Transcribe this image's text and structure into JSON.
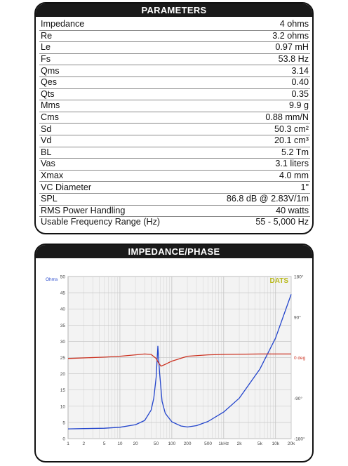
{
  "parameters": {
    "title": "PARAMETERS",
    "rows": [
      {
        "name": "Impedance",
        "value": "4 ohms"
      },
      {
        "name": "Re",
        "value": "3.2 ohms"
      },
      {
        "name": "Le",
        "value": "0.97 mH"
      },
      {
        "name": "Fs",
        "value": "53.8 Hz"
      },
      {
        "name": "Qms",
        "value": "3.14"
      },
      {
        "name": "Qes",
        "value": "0.40"
      },
      {
        "name": "Qts",
        "value": "0.35"
      },
      {
        "name": "Mms",
        "value": "9.9 g"
      },
      {
        "name": "Cms",
        "value": "0.88 mm/N"
      },
      {
        "name": "Sd",
        "value": "50.3 cm²"
      },
      {
        "name": "Vd",
        "value": "20.1 cm³"
      },
      {
        "name": "BL",
        "value": "5.2 Tm"
      },
      {
        "name": "Vas",
        "value": "3.1 liters"
      },
      {
        "name": "Xmax",
        "value": "4.0 mm"
      },
      {
        "name": "VC Diameter",
        "value": "1\""
      },
      {
        "name": "SPL",
        "value": "86.8 dB @ 2.83V/1m"
      },
      {
        "name": "RMS Power Handling",
        "value": "40 watts"
      },
      {
        "name": "Usable Frequency Range (Hz)",
        "value": "55 - 5,000 Hz"
      }
    ]
  },
  "impedance_panel": {
    "title": "IMPEDANCE/PHASE",
    "brand": "DATS",
    "left_unit": "Ohms",
    "phase_label": "0 deg"
  },
  "chart_data": {
    "type": "line",
    "x_scale": "log",
    "xlim": [
      1,
      20000
    ],
    "x_ticks": [
      1,
      2,
      5,
      10,
      20,
      50,
      100,
      200,
      500,
      1000,
      2000,
      5000,
      10000,
      20000
    ],
    "x_tick_labels": [
      "1",
      "2",
      "5",
      "10",
      "20",
      "50",
      "100",
      "200",
      "500",
      "1kHz",
      "2k",
      "5k",
      "10k",
      "20k"
    ],
    "ylim": [
      0,
      50
    ],
    "y_ticks": [
      0,
      5,
      10,
      15,
      20,
      25,
      30,
      35,
      40,
      45,
      50
    ],
    "y2lim": [
      -180,
      180
    ],
    "y2_tick_labels": [
      "180°",
      "90°",
      "0 deg",
      "-90°",
      "-180°"
    ],
    "grid": true,
    "series": [
      {
        "color": "#2244cc",
        "axis": "left",
        "points": [
          [
            1,
            3.0
          ],
          [
            2,
            3.1
          ],
          [
            5,
            3.2
          ],
          [
            10,
            3.5
          ],
          [
            20,
            4.3
          ],
          [
            30,
            5.6
          ],
          [
            40,
            8.8
          ],
          [
            45,
            12.5
          ],
          [
            50,
            19.0
          ],
          [
            53.8,
            28.5
          ],
          [
            58,
            20.5
          ],
          [
            65,
            11.5
          ],
          [
            75,
            7.8
          ],
          [
            100,
            5.2
          ],
          [
            150,
            3.9
          ],
          [
            200,
            3.6
          ],
          [
            300,
            4.0
          ],
          [
            500,
            5.3
          ],
          [
            1000,
            8.2
          ],
          [
            2000,
            12.5
          ],
          [
            5000,
            21.5
          ],
          [
            10000,
            31.0
          ],
          [
            20000,
            44.5
          ]
        ]
      },
      {
        "color": "#cc3322",
        "axis": "right",
        "points": [
          [
            1,
            -2
          ],
          [
            5,
            1
          ],
          [
            10,
            3
          ],
          [
            20,
            6
          ],
          [
            30,
            8
          ],
          [
            40,
            7
          ],
          [
            50,
            -2
          ],
          [
            55,
            -11
          ],
          [
            62,
            -19
          ],
          [
            75,
            -15
          ],
          [
            100,
            -8
          ],
          [
            200,
            3
          ],
          [
            500,
            6
          ],
          [
            1000,
            7
          ],
          [
            5000,
            8
          ],
          [
            10000,
            8
          ],
          [
            20000,
            8
          ]
        ]
      }
    ]
  }
}
